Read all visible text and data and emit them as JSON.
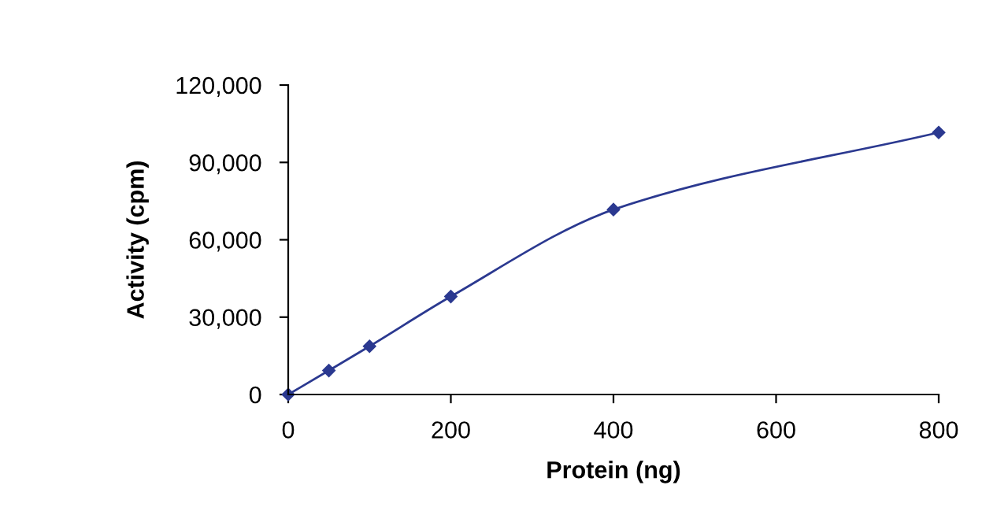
{
  "chart_data": {
    "type": "line",
    "xlabel": "Protein (ng)",
    "ylabel": "Activity (cpm)",
    "x": [
      0,
      50,
      100,
      200,
      400,
      800
    ],
    "series": [
      {
        "color": "#2b3990",
        "values": [
          0,
          9300,
          18700,
          38000,
          71700,
          101600
        ]
      }
    ],
    "xlim": [
      0,
      800
    ],
    "xticks": [
      0,
      200,
      400,
      600,
      800
    ],
    "ylim": [
      0,
      120000
    ],
    "yticks": [
      {
        "value": 0,
        "label": "0"
      },
      {
        "value": 30000,
        "label": "30,000"
      },
      {
        "value": 60000,
        "label": "60,000"
      },
      {
        "value": 90000,
        "label": "90,000"
      },
      {
        "value": 120000,
        "label": "120,000"
      }
    ],
    "marker": "diamond",
    "line_style": "solid",
    "grid": false
  }
}
